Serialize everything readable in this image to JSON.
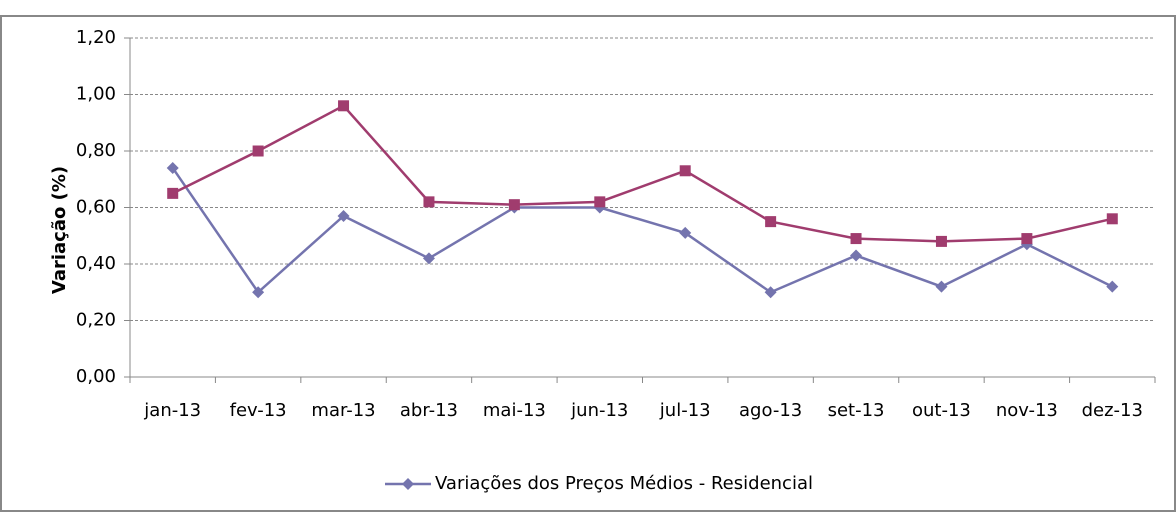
{
  "chart_data": {
    "type": "line",
    "y_label": "Variação (%)",
    "categories": [
      "jan-13",
      "fev-13",
      "mar-13",
      "abr-13",
      "mai-13",
      "jun-13",
      "jul-13",
      "ago-13",
      "set-13",
      "out-13",
      "nov-13",
      "dez-13"
    ],
    "series": [
      {
        "name": "Variações dos Preços Médios - Residencial",
        "color": "#7474ae",
        "marker": "diamond",
        "values": [
          0.74,
          0.3,
          0.57,
          0.42,
          0.6,
          0.6,
          0.51,
          0.3,
          0.43,
          0.32,
          0.47,
          0.32
        ]
      },
      {
        "color": "#a03c6e",
        "marker": "square",
        "values": [
          0.65,
          0.8,
          0.96,
          0.62,
          0.61,
          0.62,
          0.73,
          0.55,
          0.49,
          0.48,
          0.49,
          0.56
        ]
      }
    ],
    "ylim": [
      0,
      1.2
    ],
    "yticks": [
      {
        "value": 0,
        "label": "0,00"
      },
      {
        "value": 0.2,
        "label": "0,20"
      },
      {
        "value": 0.4,
        "label": "0,40"
      },
      {
        "value": 0.6,
        "label": "0,60"
      },
      {
        "value": 0.8,
        "label": "0,80"
      },
      {
        "value": 1.0,
        "label": "1,00"
      },
      {
        "value": 1.2,
        "label": "1,20"
      }
    ],
    "grid": true,
    "legend": "bottom"
  }
}
